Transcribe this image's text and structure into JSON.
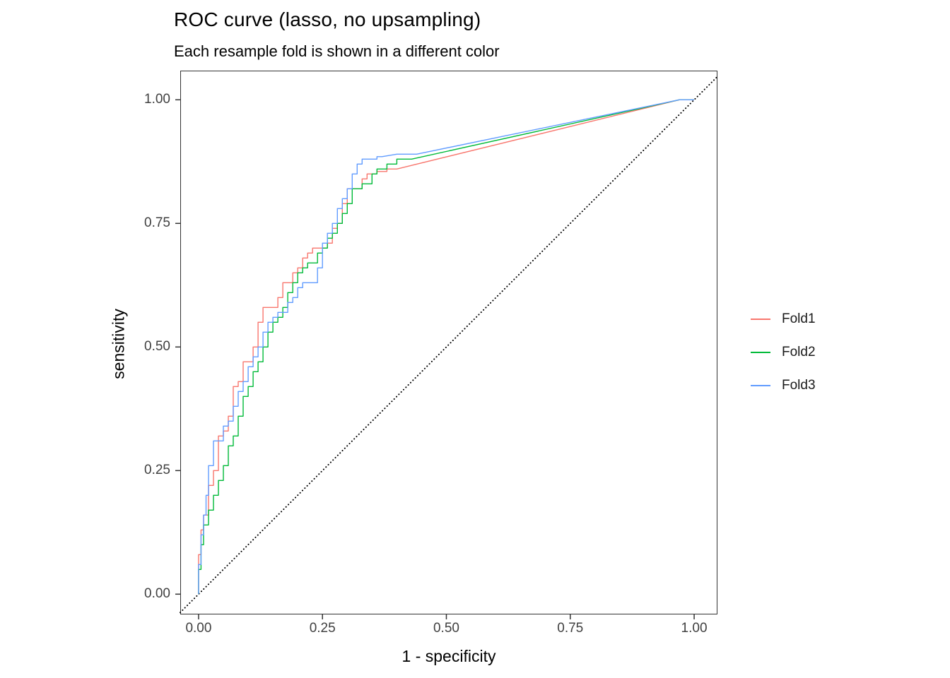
{
  "figure": {
    "background": "#FFFFFF"
  },
  "chart_data": {
    "type": "line",
    "title": "ROC curve (lasso, no upsampling)",
    "subtitle": "Each resample fold is shown in a different color",
    "xlabel": "1 - specificity",
    "ylabel": "sensitivity",
    "grid": false,
    "legend_position": "right",
    "xlim": [
      -0.037,
      1.047
    ],
    "ylim": [
      -0.041,
      1.059
    ],
    "x_ticks": {
      "values": [
        0,
        0.25,
        0.5,
        0.75,
        1.0
      ],
      "labels": [
        "0.00",
        "0.25",
        "0.50",
        "0.75",
        "1.00"
      ]
    },
    "y_ticks": {
      "values": [
        0,
        0.25,
        0.5,
        0.75,
        1.0
      ],
      "labels": [
        "0.00",
        "0.25",
        "0.50",
        "0.75",
        "1.00"
      ]
    },
    "reference_line": {
      "type": "diagonal",
      "style": "dotted",
      "color": "#000000",
      "from": [
        0,
        0
      ],
      "to": [
        1,
        1
      ]
    },
    "series": [
      {
        "name": "Fold1",
        "color": "#F8766D",
        "x": [
          0,
          0.005,
          0.01,
          0.02,
          0.02,
          0.03,
          0.03,
          0.04,
          0.04,
          0.05,
          0.06,
          0.06,
          0.07,
          0.07,
          0.08,
          0.09,
          0.09,
          0.1,
          0.11,
          0.11,
          0.12,
          0.12,
          0.13,
          0.13,
          0.14,
          0.16,
          0.16,
          0.17,
          0.17,
          0.18,
          0.19,
          0.19,
          0.2,
          0.21,
          0.21,
          0.22,
          0.23,
          0.23,
          0.26,
          0.26,
          0.27,
          0.27,
          0.28,
          0.29,
          0.29,
          0.3,
          0.3,
          0.31,
          0.33,
          0.33,
          0.34,
          0.36,
          0.38,
          0.4,
          0.97,
          1.0
        ],
        "y": [
          0,
          0.08,
          0.13,
          0.16,
          0.2,
          0.22,
          0.25,
          0.25,
          0.3,
          0.32,
          0.33,
          0.35,
          0.36,
          0.4,
          0.42,
          0.43,
          0.46,
          0.47,
          0.47,
          0.49,
          0.5,
          0.53,
          0.55,
          0.57,
          0.58,
          0.58,
          0.6,
          0.6,
          0.62,
          0.63,
          0.63,
          0.65,
          0.65,
          0.66,
          0.67,
          0.68,
          0.69,
          0.7,
          0.7,
          0.71,
          0.71,
          0.73,
          0.74,
          0.75,
          0.78,
          0.79,
          0.81,
          0.82,
          0.82,
          0.83,
          0.84,
          0.85,
          0.855,
          0.86,
          1.0,
          1.0
        ]
      },
      {
        "name": "Fold2",
        "color": "#00BA38",
        "x": [
          0,
          0.005,
          0.01,
          0.02,
          0.03,
          0.03,
          0.04,
          0.04,
          0.05,
          0.05,
          0.06,
          0.06,
          0.07,
          0.08,
          0.08,
          0.09,
          0.09,
          0.1,
          0.11,
          0.11,
          0.12,
          0.13,
          0.13,
          0.14,
          0.14,
          0.15,
          0.16,
          0.17,
          0.18,
          0.18,
          0.19,
          0.2,
          0.21,
          0.22,
          0.24,
          0.24,
          0.25,
          0.26,
          0.27,
          0.28,
          0.29,
          0.3,
          0.31,
          0.31,
          0.33,
          0.35,
          0.35,
          0.36,
          0.38,
          0.4,
          0.43,
          0.97,
          1.0
        ],
        "y": [
          0,
          0.05,
          0.1,
          0.14,
          0.17,
          0.19,
          0.2,
          0.22,
          0.23,
          0.25,
          0.26,
          0.28,
          0.3,
          0.32,
          0.34,
          0.36,
          0.38,
          0.4,
          0.42,
          0.44,
          0.45,
          0.47,
          0.49,
          0.5,
          0.52,
          0.53,
          0.55,
          0.56,
          0.58,
          0.6,
          0.61,
          0.63,
          0.65,
          0.66,
          0.67,
          0.68,
          0.69,
          0.7,
          0.72,
          0.73,
          0.75,
          0.77,
          0.79,
          0.81,
          0.82,
          0.83,
          0.84,
          0.85,
          0.86,
          0.87,
          0.88,
          1.0,
          1.0
        ]
      },
      {
        "name": "Fold3",
        "color": "#619CFF",
        "x": [
          0,
          0.005,
          0.01,
          0.015,
          0.02,
          0.02,
          0.03,
          0.03,
          0.035,
          0.05,
          0.05,
          0.06,
          0.07,
          0.07,
          0.08,
          0.09,
          0.1,
          0.1,
          0.11,
          0.12,
          0.13,
          0.13,
          0.14,
          0.15,
          0.16,
          0.16,
          0.18,
          0.19,
          0.2,
          0.21,
          0.22,
          0.24,
          0.24,
          0.25,
          0.25,
          0.26,
          0.27,
          0.28,
          0.28,
          0.29,
          0.3,
          0.31,
          0.31,
          0.32,
          0.32,
          0.33,
          0.34,
          0.36,
          0.37,
          0.4,
          0.44,
          0.97,
          1.0
        ],
        "y": [
          0,
          0.06,
          0.12,
          0.16,
          0.2,
          0.24,
          0.26,
          0.3,
          0.31,
          0.31,
          0.33,
          0.34,
          0.35,
          0.37,
          0.38,
          0.41,
          0.43,
          0.45,
          0.46,
          0.48,
          0.5,
          0.52,
          0.53,
          0.55,
          0.56,
          0.57,
          0.57,
          0.59,
          0.6,
          0.62,
          0.63,
          0.63,
          0.65,
          0.66,
          0.7,
          0.71,
          0.73,
          0.75,
          0.77,
          0.78,
          0.8,
          0.82,
          0.84,
          0.85,
          0.87,
          0.87,
          0.88,
          0.88,
          0.885,
          0.89,
          0.89,
          1.0,
          1.0
        ]
      }
    ]
  }
}
